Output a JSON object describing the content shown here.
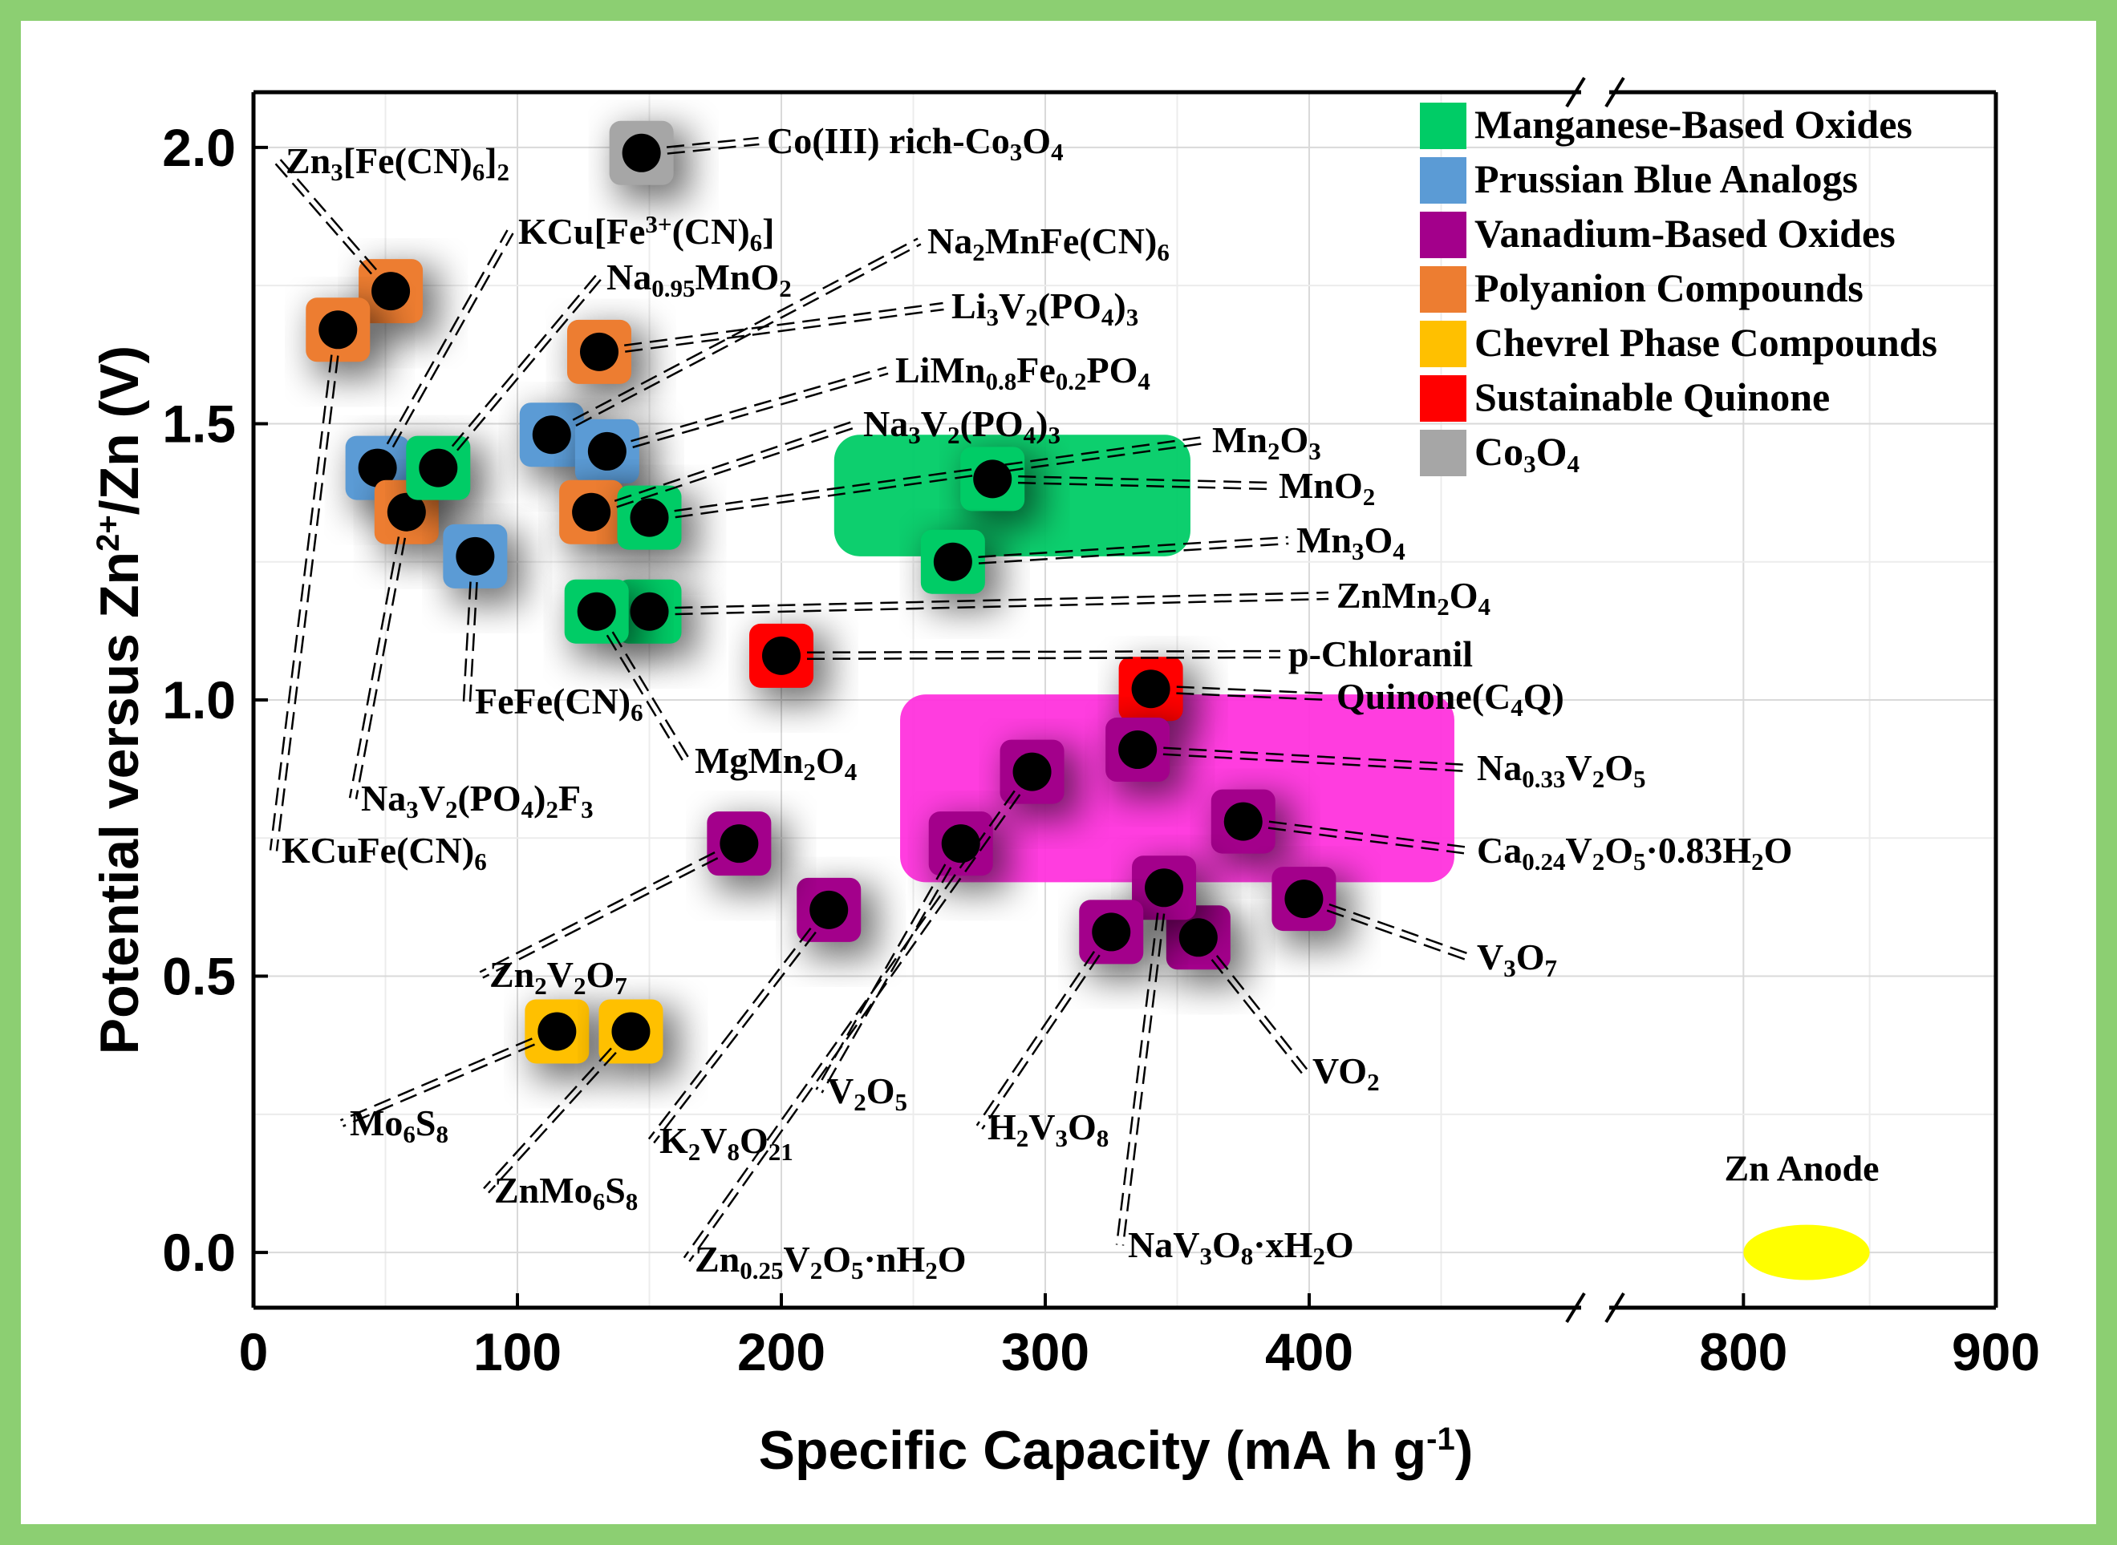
{
  "chart_data": {
    "type": "scatter",
    "title": "",
    "xlabel": "Specific Capacity (mA h g",
    "xlabel_sup": "-1",
    "xlabel_end": ")",
    "ylabel_pre": "Potential versus Zn",
    "ylabel_sup": "2+",
    "ylabel_post": "/Zn (V)",
    "xlim_segments": [
      [
        0,
        500
      ],
      [
        750,
        900
      ]
    ],
    "ylim": [
      -0.1,
      2.1
    ],
    "x_ticks": [
      0,
      100,
      200,
      300,
      400,
      800,
      900
    ],
    "y_ticks": [
      "0.0",
      "0.5",
      "1.0",
      "1.5",
      "2.0"
    ],
    "axis_break": "x",
    "grid": true,
    "legend_position": "top-right",
    "categories": [
      {
        "name": "Manganese-Based Oxides",
        "color": "#00cc66"
      },
      {
        "name": "Prussian  Blue Analogs",
        "color": "#5b9bd5"
      },
      {
        "name": "Vanadium-Based Oxides",
        "color": "#a3008b"
      },
      {
        "name": "Polyanion  Compounds",
        "color": "#ed7d31"
      },
      {
        "name": "Chevrel Phase Compounds",
        "color": "#ffc000"
      },
      {
        "name": "Sustainable  Quinone",
        "color": "#ff0000"
      },
      {
        "name": "Co3O4",
        "color": "#a6a6a6"
      }
    ],
    "regions": [
      {
        "category": "Manganese-Based Oxides",
        "color": "#00cc66",
        "x": [
          220,
          355
        ],
        "y": [
          1.26,
          1.48
        ]
      },
      {
        "category": "Vanadium-Based Oxides",
        "color": "#ff33dd",
        "x": [
          245,
          455
        ],
        "y": [
          0.67,
          1.01
        ]
      },
      {
        "category": "Zn Anode",
        "color": "#ffff00",
        "x": [
          800,
          850
        ],
        "y": [
          -0.05,
          0.05
        ]
      }
    ],
    "annotation": "Zn Anode",
    "series": [
      {
        "label": "Zn3[Fe(CN)6]2",
        "category": "Polyanion  Compounds",
        "x": 52,
        "y": 1.74
      },
      {
        "label": "KCuFe(CN)6",
        "category": "Polyanion  Compounds",
        "x": 32,
        "y": 1.67
      },
      {
        "label": "KCu[Fe3+(CN)6]",
        "category": "Prussian  Blue Analogs",
        "x": 47,
        "y": 1.42
      },
      {
        "label": "Na3V2(PO4)2F3",
        "category": "Polyanion  Compounds",
        "x": 58,
        "y": 1.34
      },
      {
        "label": "Na0.95MnO2",
        "category": "Manganese-Based Oxides",
        "x": 70,
        "y": 1.42
      },
      {
        "label": "FeFe(CN)6",
        "category": "Prussian  Blue Analogs",
        "x": 84,
        "y": 1.26
      },
      {
        "label": "Na2MnFe(CN)6",
        "category": "Prussian  Blue Analogs",
        "x": 113,
        "y": 1.48
      },
      {
        "label": "Li3V2(PO4)3",
        "category": "Polyanion  Compounds",
        "x": 131,
        "y": 1.63
      },
      {
        "label": "LiMn0.8Fe0.2PO4",
        "category": "Prussian  Blue Analogs",
        "x": 134,
        "y": 1.45
      },
      {
        "label": "Na3V2(PO4)3",
        "category": "Polyanion  Compounds",
        "x": 128,
        "y": 1.34
      },
      {
        "label": "Mn2O3",
        "category": "Manganese-Based Oxides",
        "x": 150,
        "y": 1.33
      },
      {
        "label": "MnO2",
        "category": "Manganese-Based Oxides",
        "x": 280,
        "y": 1.4
      },
      {
        "label": "Mn3O4",
        "category": "Manganese-Based Oxides",
        "x": 265,
        "y": 1.25
      },
      {
        "label": "ZnMn2O4",
        "category": "Manganese-Based Oxides",
        "x": 150,
        "y": 1.16
      },
      {
        "label": "MgMn2O4",
        "category": "Manganese-Based Oxides",
        "x": 130,
        "y": 1.16
      },
      {
        "label": "p-Chloranil",
        "category": "Sustainable  Quinone",
        "x": 200,
        "y": 1.08
      },
      {
        "label": "Quinone(C4Q)",
        "category": "Sustainable  Quinone",
        "x": 340,
        "y": 1.02
      },
      {
        "label": "Co(III)  rich-Co3O4",
        "category": "Co3O4",
        "x": 147,
        "y": 1.99
      },
      {
        "label": "Na0.33V2O5",
        "category": "Vanadium-Based Oxides",
        "x": 335,
        "y": 0.91
      },
      {
        "label": "Ca0.24V2O5·0.83H2O",
        "category": "Vanadium-Based Oxides",
        "x": 375,
        "y": 0.78
      },
      {
        "label": "V3O7",
        "category": "Vanadium-Based Oxides",
        "x": 398,
        "y": 0.64
      },
      {
        "label": "VO2",
        "category": "Vanadium-Based Oxides",
        "x": 358,
        "y": 0.57
      },
      {
        "label": "NaV3O8·xH2O",
        "category": "Vanadium-Based Oxides",
        "x": 345,
        "y": 0.66
      },
      {
        "label": "H2V3O8",
        "category": "Vanadium-Based Oxides",
        "x": 325,
        "y": 0.58
      },
      {
        "label": "Zn0.25V2O5·nH2O",
        "category": "Vanadium-Based Oxides",
        "x": 295,
        "y": 0.87
      },
      {
        "label": "V2O5",
        "category": "Vanadium-Based Oxides",
        "x": 268,
        "y": 0.74
      },
      {
        "label": "K2V8O21",
        "category": "Vanadium-Based Oxides",
        "x": 218,
        "y": 0.62
      },
      {
        "label": "Zn2V2O7",
        "category": "Vanadium-Based Oxides",
        "x": 184,
        "y": 0.74
      },
      {
        "label": "Mo6S8",
        "category": "Chevrel Phase Compounds",
        "x": 115,
        "y": 0.4
      },
      {
        "label": "ZnMo6S8",
        "category": "Chevrel Phase Compounds",
        "x": 143,
        "y": 0.4
      }
    ]
  }
}
